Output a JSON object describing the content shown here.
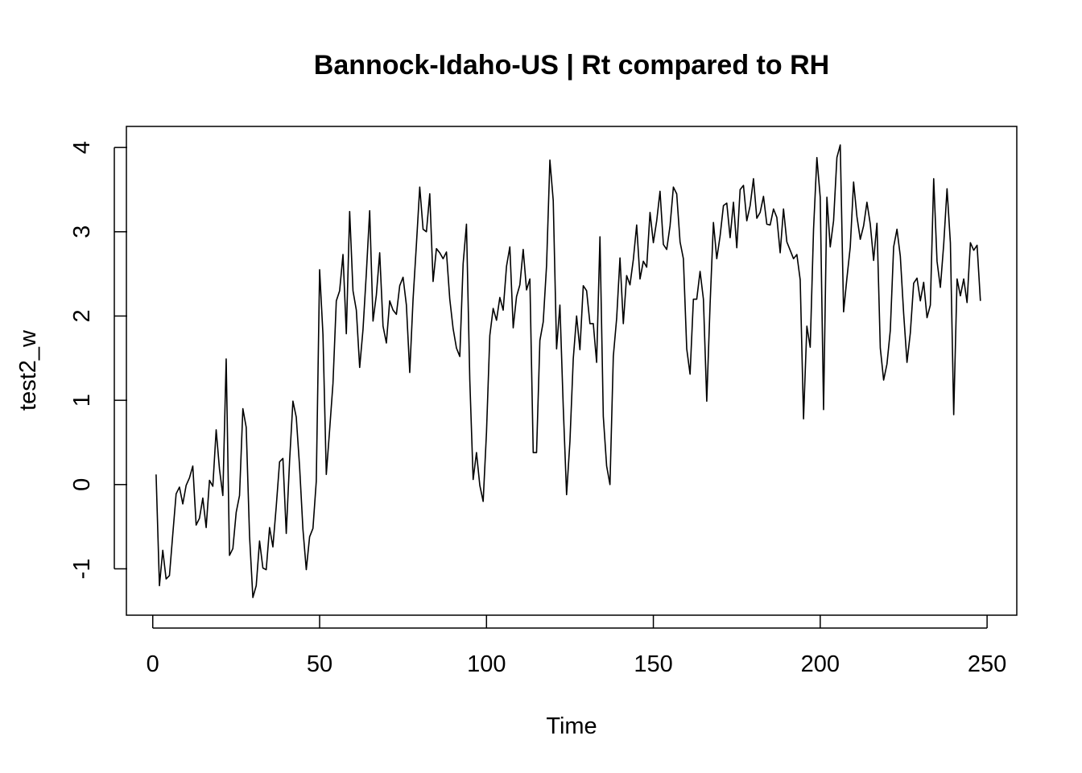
{
  "chart_data": {
    "type": "line",
    "title": "Bannock-Idaho-US | Rt compared to RH",
    "xlabel": "Time",
    "ylabel": "test2_w",
    "xlim": [
      -7.9,
      258.9
    ],
    "ylim": [
      -1.55,
      4.25
    ],
    "x_ticks": [
      0,
      50,
      100,
      150,
      200,
      250
    ],
    "y_ticks": [
      -1,
      0,
      1,
      2,
      3,
      4
    ],
    "x_tick_labels": [
      "0",
      "50",
      "100",
      "150",
      "200",
      "250"
    ],
    "y_tick_labels": [
      "-1",
      "0",
      "1",
      "2",
      "3",
      "4"
    ],
    "grid": false,
    "legend": "none",
    "line_color": "#000000",
    "series": [
      {
        "x_start": 1,
        "values": [
          0.12,
          -1.2,
          -0.78,
          -1.12,
          -1.08,
          -0.59,
          -0.11,
          -0.03,
          -0.23,
          -0.01,
          0.08,
          0.22,
          -0.48,
          -0.4,
          -0.16,
          -0.51,
          0.05,
          -0.02,
          0.65,
          0.18,
          -0.13,
          1.49,
          -0.84,
          -0.76,
          -0.33,
          -0.13,
          0.9,
          0.68,
          -0.61,
          -1.34,
          -1.2,
          -0.67,
          -0.99,
          -1.01,
          -0.51,
          -0.74,
          -0.26,
          0.27,
          0.31,
          -0.58,
          0.28,
          0.99,
          0.8,
          0.21,
          -0.53,
          -1.01,
          -0.62,
          -0.52,
          0.04,
          2.55,
          1.78,
          0.12,
          0.65,
          1.2,
          2.18,
          2.3,
          2.73,
          1.79,
          3.24,
          2.3,
          2.07,
          1.39,
          1.84,
          2.51,
          3.25,
          1.94,
          2.25,
          2.75,
          1.88,
          1.68,
          2.18,
          2.07,
          2.02,
          2.36,
          2.46,
          2.13,
          1.33,
          2.2,
          2.85,
          3.53,
          3.03,
          3.0,
          3.45,
          2.41,
          2.8,
          2.75,
          2.68,
          2.76,
          2.2,
          1.85,
          1.62,
          1.52,
          2.62,
          3.09,
          1.24,
          0.06,
          0.38,
          -0.01,
          -0.2,
          0.62,
          1.77,
          2.09,
          1.95,
          2.22,
          2.07,
          2.59,
          2.82,
          1.86,
          2.23,
          2.37,
          2.79,
          2.31,
          2.44,
          0.38,
          0.38,
          1.71,
          1.93,
          2.6,
          3.85,
          3.37,
          1.61,
          2.13,
          0.92,
          -0.12,
          0.51,
          1.49,
          2.0,
          1.6,
          2.36,
          2.3,
          1.91,
          1.91,
          1.45,
          2.94,
          0.81,
          0.22,
          0.0,
          1.52,
          1.97,
          2.69,
          1.91,
          2.48,
          2.37,
          2.67,
          3.08,
          2.44,
          2.65,
          2.58,
          3.23,
          2.87,
          3.13,
          3.48,
          2.85,
          2.79,
          3.07,
          3.53,
          3.45,
          2.88,
          2.68,
          1.61,
          1.31,
          2.2,
          2.2,
          2.53,
          2.2,
          0.99,
          2.14,
          3.11,
          2.68,
          2.95,
          3.31,
          3.34,
          2.93,
          3.35,
          2.81,
          3.5,
          3.55,
          3.13,
          3.31,
          3.63,
          3.16,
          3.23,
          3.42,
          3.09,
          3.08,
          3.27,
          3.17,
          2.75,
          3.27,
          2.88,
          2.78,
          2.68,
          2.73,
          2.43,
          0.78,
          1.88,
          1.63,
          3.03,
          3.88,
          3.41,
          0.89,
          3.41,
          2.82,
          3.13,
          3.88,
          4.03,
          2.05,
          2.45,
          2.82,
          3.59,
          3.18,
          2.91,
          3.07,
          3.35,
          3.09,
          2.66,
          3.1,
          1.62,
          1.24,
          1.43,
          1.83,
          2.82,
          3.03,
          2.71,
          2.03,
          1.45,
          1.8,
          2.39,
          2.45,
          2.18,
          2.4,
          1.98,
          2.13,
          3.63,
          2.65,
          2.34,
          2.85,
          3.51,
          2.87,
          0.83,
          2.44,
          2.24,
          2.44,
          2.16,
          2.87,
          2.78,
          2.84,
          2.18
        ]
      }
    ]
  }
}
